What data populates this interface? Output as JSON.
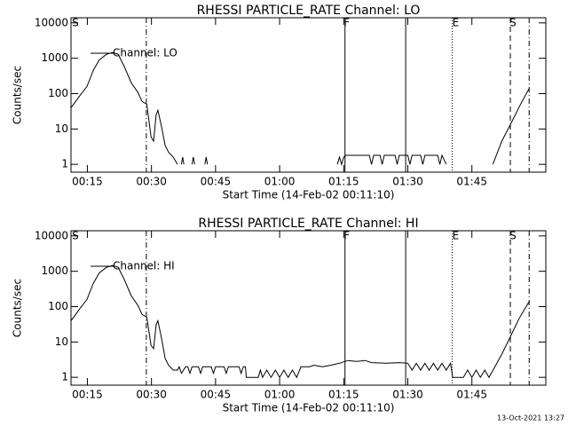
{
  "chart_data": [
    {
      "type": "line",
      "title": "RHESSI PARTICLE_RATE Channel: LO",
      "xlabel": "Start Time (14-Feb-02 00:11:10)",
      "ylabel": "Counts/sec",
      "log_y": true,
      "ylim": [
        0.6,
        14000
      ],
      "yticks": [
        1,
        10,
        100,
        1000,
        10000
      ],
      "xlim": [
        11.17,
        122.3
      ],
      "xticks": [
        {
          "value": 15,
          "label": "00:15"
        },
        {
          "value": 30,
          "label": "00:30"
        },
        {
          "value": 45,
          "label": "00:45"
        },
        {
          "value": 60,
          "label": "01:00"
        },
        {
          "value": 75,
          "label": "01:15"
        },
        {
          "value": 90,
          "label": "01:30"
        },
        {
          "value": 105,
          "label": "01:45"
        }
      ],
      "vlines": [
        {
          "x": 28.8,
          "dash": "dashdot"
        },
        {
          "x": 75.3,
          "dash": "solid"
        },
        {
          "x": 89.5,
          "dash": "solid"
        },
        {
          "x": 100.4,
          "dash": "dotted"
        },
        {
          "x": 114.0,
          "dash": "dashed"
        },
        {
          "x": 118.4,
          "dash": "dashdot"
        }
      ],
      "annotations": [
        {
          "text": "S",
          "x": 12.2
        },
        {
          "text": "F",
          "x": 75.7
        },
        {
          "text": "E",
          "x": 101.2
        },
        {
          "text": "S",
          "x": 114.6
        }
      ],
      "series": [
        {
          "name": "Channel: LO",
          "color": "#000000",
          "x": [
            11.2,
            13.3,
            14.9,
            16.4,
            17.8,
            19.5,
            20.9,
            22.2,
            23.6,
            25.3,
            26.8,
            27.8,
            28.9,
            29.9,
            30.5,
            31.1,
            31.5,
            32.4,
            33.2,
            34.0,
            35.1,
            36.1,
            36.6,
            37.0,
            37.3,
            37.6,
            38.2,
            39.5,
            39.8,
            40.1,
            40.5,
            42.5,
            42.8,
            43.1,
            43.5,
            73.5,
            74,
            74.5,
            75,
            75.5,
            81,
            81.5,
            82,
            83.5,
            84,
            84.5,
            87,
            87.5,
            88,
            90,
            90.5,
            91,
            93,
            93.5,
            94,
            97,
            97.5,
            98,
            99,
            99.5,
            109.9,
            112,
            114.1,
            116.2,
            118.4
          ],
          "values": [
            40,
            90,
            160,
            460,
            900,
            1300,
            1450,
            1300,
            600,
            200,
            110,
            60,
            50,
            6,
            4.5,
            25,
            34,
            11,
            3.4,
            2.2,
            1.6,
            1,
            null,
            1,
            1.6,
            1,
            null,
            1,
            1.6,
            1,
            null,
            1,
            1.6,
            1,
            null,
            1,
            1.6,
            1,
            1.6,
            1.8,
            1.8,
            1,
            1.8,
            1.8,
            1,
            1.8,
            1.8,
            1,
            1.8,
            1.8,
            1,
            1.8,
            1.8,
            1,
            1.8,
            1.8,
            1,
            1.8,
            1,
            null,
            1,
            4.5,
            14,
            45,
            140
          ]
        }
      ]
    },
    {
      "type": "line",
      "title": "RHESSI PARTICLE_RATE Channel: HI",
      "xlabel": "Start Time (14-Feb-02 00:11:10)",
      "ylabel": "Counts/sec",
      "log_y": true,
      "ylim": [
        0.6,
        14000
      ],
      "yticks": [
        1,
        10,
        100,
        1000,
        10000
      ],
      "xlim": [
        11.17,
        122.3
      ],
      "xticks": [
        {
          "value": 15,
          "label": "00:15"
        },
        {
          "value": 30,
          "label": "00:30"
        },
        {
          "value": 45,
          "label": "00:45"
        },
        {
          "value": 60,
          "label": "01:00"
        },
        {
          "value": 75,
          "label": "01:15"
        },
        {
          "value": 90,
          "label": "01:30"
        },
        {
          "value": 105,
          "label": "01:45"
        }
      ],
      "vlines": [
        {
          "x": 28.8,
          "dash": "dashdot"
        },
        {
          "x": 75.3,
          "dash": "solid"
        },
        {
          "x": 89.5,
          "dash": "solid"
        },
        {
          "x": 100.4,
          "dash": "dotted"
        },
        {
          "x": 114.0,
          "dash": "dashed"
        },
        {
          "x": 118.4,
          "dash": "dashdot"
        }
      ],
      "annotations": [
        {
          "text": "S",
          "x": 12.2
        },
        {
          "text": "F",
          "x": 75.7
        },
        {
          "text": "E",
          "x": 101.2
        },
        {
          "text": "S",
          "x": 114.6
        }
      ],
      "series": [
        {
          "name": "Channel: HI",
          "color": "#000000",
          "x": [
            11.2,
            13.3,
            14.9,
            16.4,
            17.8,
            19.5,
            20.9,
            22.2,
            23.6,
            25.3,
            26.8,
            27.8,
            28.9,
            29.9,
            30.5,
            31.1,
            31.5,
            32.4,
            33.2,
            34.0,
            35.1,
            36.1,
            36.5,
            37,
            38,
            38.5,
            39,
            39.5,
            41,
            41.5,
            42,
            44,
            44.5,
            45,
            47,
            47.5,
            48,
            50.5,
            51,
            51.5,
            52,
            52.2,
            55,
            55.5,
            56,
            57,
            58,
            59,
            60,
            61,
            62,
            63,
            64,
            65,
            66,
            67,
            68,
            70,
            72,
            74,
            76,
            78,
            80,
            81.5,
            85,
            88,
            90,
            91,
            92,
            93,
            94,
            95,
            96,
            97,
            98,
            99,
            100,
            100.5,
            103,
            104,
            105,
            106,
            107,
            108,
            109,
            112,
            114,
            116,
            118.4
          ],
          "values": [
            40,
            90,
            160,
            460,
            900,
            1300,
            1450,
            1300,
            600,
            200,
            110,
            60,
            50,
            8,
            6.5,
            30,
            40,
            12,
            3.4,
            2.2,
            1.6,
            1.6,
            2,
            1.3,
            2,
            2,
            1.3,
            2,
            2,
            1.3,
            2,
            2,
            1.3,
            2,
            2,
            1.3,
            2,
            2,
            1.3,
            2,
            2,
            1,
            1,
            1.6,
            1,
            1.6,
            1,
            1.6,
            1,
            1.6,
            1,
            1.6,
            1,
            2,
            2,
            2,
            2.2,
            2,
            2.2,
            2.5,
            3,
            2.8,
            3,
            2.6,
            2.5,
            2.6,
            2.5,
            1.6,
            2.5,
            1.6,
            2.5,
            1.6,
            2.5,
            1.6,
            2.5,
            1.6,
            2.5,
            1,
            1,
            1.6,
            1,
            1.6,
            1,
            1.6,
            1,
            4.5,
            14,
            45,
            140
          ]
        }
      ]
    }
  ],
  "footer": "13-Oct-2021 13:27"
}
